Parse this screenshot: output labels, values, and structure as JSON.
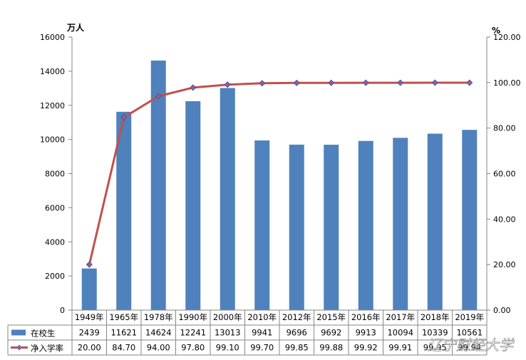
{
  "chart_data": {
    "type": "bar+line",
    "categories": [
      "1949年",
      "1965年",
      "1978年",
      "1990年",
      "2000年",
      "2010年",
      "2012年",
      "2015年",
      "2016年",
      "2017年",
      "2018年",
      "2019年"
    ],
    "series": [
      {
        "name": "在校生",
        "type": "bar",
        "axis": "left",
        "color": "#4f81bd",
        "values": [
          2439,
          11621,
          14624,
          12241,
          13013,
          9941,
          9696,
          9692,
          9913,
          10094,
          10339,
          10561
        ],
        "table_values": [
          "2439",
          "11621",
          "14624",
          "12241",
          "13013",
          "9941",
          "9696",
          "9692",
          "9913",
          "10094",
          "10339",
          "10561"
        ]
      },
      {
        "name": "净入学率",
        "type": "line",
        "axis": "right",
        "color": "#c0504d",
        "marker_color": "#8064a2",
        "values": [
          20.0,
          84.7,
          94.0,
          97.8,
          99.1,
          99.7,
          99.85,
          99.88,
          99.92,
          99.91,
          99.95,
          99.94
        ],
        "table_values": [
          "20.00",
          "84.70",
          "94.00",
          "97.80",
          "99.10",
          "99.70",
          "99.85",
          "99.88",
          "99.92",
          "99.91",
          "99.95",
          "99.94"
        ]
      }
    ],
    "y_left": {
      "unit": "万人",
      "range": [
        0,
        16000
      ],
      "ticks": [
        "0",
        "2000",
        "4000",
        "6000",
        "8000",
        "10000",
        "12000",
        "14000",
        "16000"
      ]
    },
    "y_right": {
      "unit": "%",
      "range": [
        0,
        120
      ],
      "ticks": [
        "0.00",
        "20.00",
        "40.00",
        "60.00",
        "80.00",
        "100.00",
        "120.00"
      ]
    },
    "grid": false,
    "legend": "data-table-bottom",
    "watermark": "辽宁财经大学"
  }
}
